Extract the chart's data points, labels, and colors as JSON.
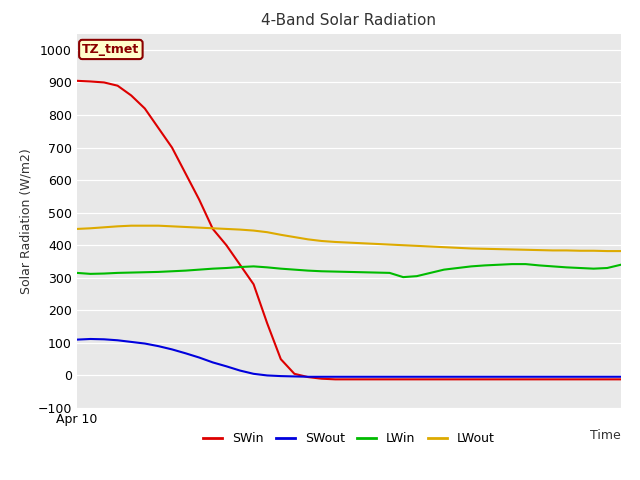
{
  "title": "4-Band Solar Radiation",
  "ylabel": "Solar Radiation (W/m2)",
  "xlabel": "Time",
  "xticklabel": "Apr 10",
  "ylim": [
    -100,
    1050
  ],
  "yticks": [
    -100,
    0,
    100,
    200,
    300,
    400,
    500,
    600,
    700,
    800,
    900,
    1000
  ],
  "fig_bg_color": "#ffffff",
  "plot_bg_color": "#e8e8e8",
  "annotation_text": "TZ_tmet",
  "annotation_bg": "#ffffcc",
  "annotation_border": "#8b0000",
  "series": {
    "SWin": {
      "color": "#dd0000",
      "points": [
        905,
        903,
        900,
        890,
        860,
        820,
        760,
        700,
        620,
        540,
        450,
        400,
        340,
        280,
        160,
        50,
        5,
        -5,
        -10,
        -12,
        -12,
        -12,
        -12,
        -12,
        -12,
        -12,
        -12,
        -12,
        -12,
        -12,
        -12,
        -12,
        -12,
        -12,
        -12,
        -12,
        -12,
        -12,
        -12,
        -12,
        -12
      ]
    },
    "SWout": {
      "color": "#0000dd",
      "points": [
        110,
        112,
        111,
        108,
        103,
        98,
        90,
        80,
        68,
        55,
        40,
        28,
        15,
        5,
        0,
        -2,
        -3,
        -4,
        -4,
        -4,
        -4,
        -4,
        -4,
        -4,
        -4,
        -4,
        -4,
        -4,
        -4,
        -4,
        -4,
        -4,
        -4,
        -4,
        -4,
        -4,
        -4,
        -4,
        -4,
        -4,
        -4
      ]
    },
    "LWin": {
      "color": "#00bb00",
      "points": [
        315,
        312,
        313,
        315,
        316,
        317,
        318,
        320,
        322,
        325,
        328,
        330,
        333,
        335,
        332,
        328,
        325,
        322,
        320,
        319,
        318,
        317,
        316,
        315,
        302,
        305,
        315,
        325,
        330,
        335,
        338,
        340,
        342,
        342,
        338,
        335,
        332,
        330,
        328,
        330,
        340
      ]
    },
    "LWout": {
      "color": "#ddaa00",
      "points": [
        450,
        452,
        455,
        458,
        460,
        460,
        460,
        458,
        456,
        454,
        452,
        450,
        448,
        445,
        440,
        432,
        425,
        418,
        413,
        410,
        408,
        406,
        404,
        402,
        400,
        398,
        396,
        394,
        392,
        390,
        389,
        388,
        387,
        386,
        385,
        384,
        384,
        383,
        383,
        382,
        382
      ]
    }
  },
  "legend_entries": [
    "SWin",
    "SWout",
    "LWin",
    "LWout"
  ],
  "legend_colors": [
    "#dd0000",
    "#0000dd",
    "#00bb00",
    "#ddaa00"
  ],
  "title_fontsize": 11,
  "label_fontsize": 9,
  "tick_fontsize": 9
}
